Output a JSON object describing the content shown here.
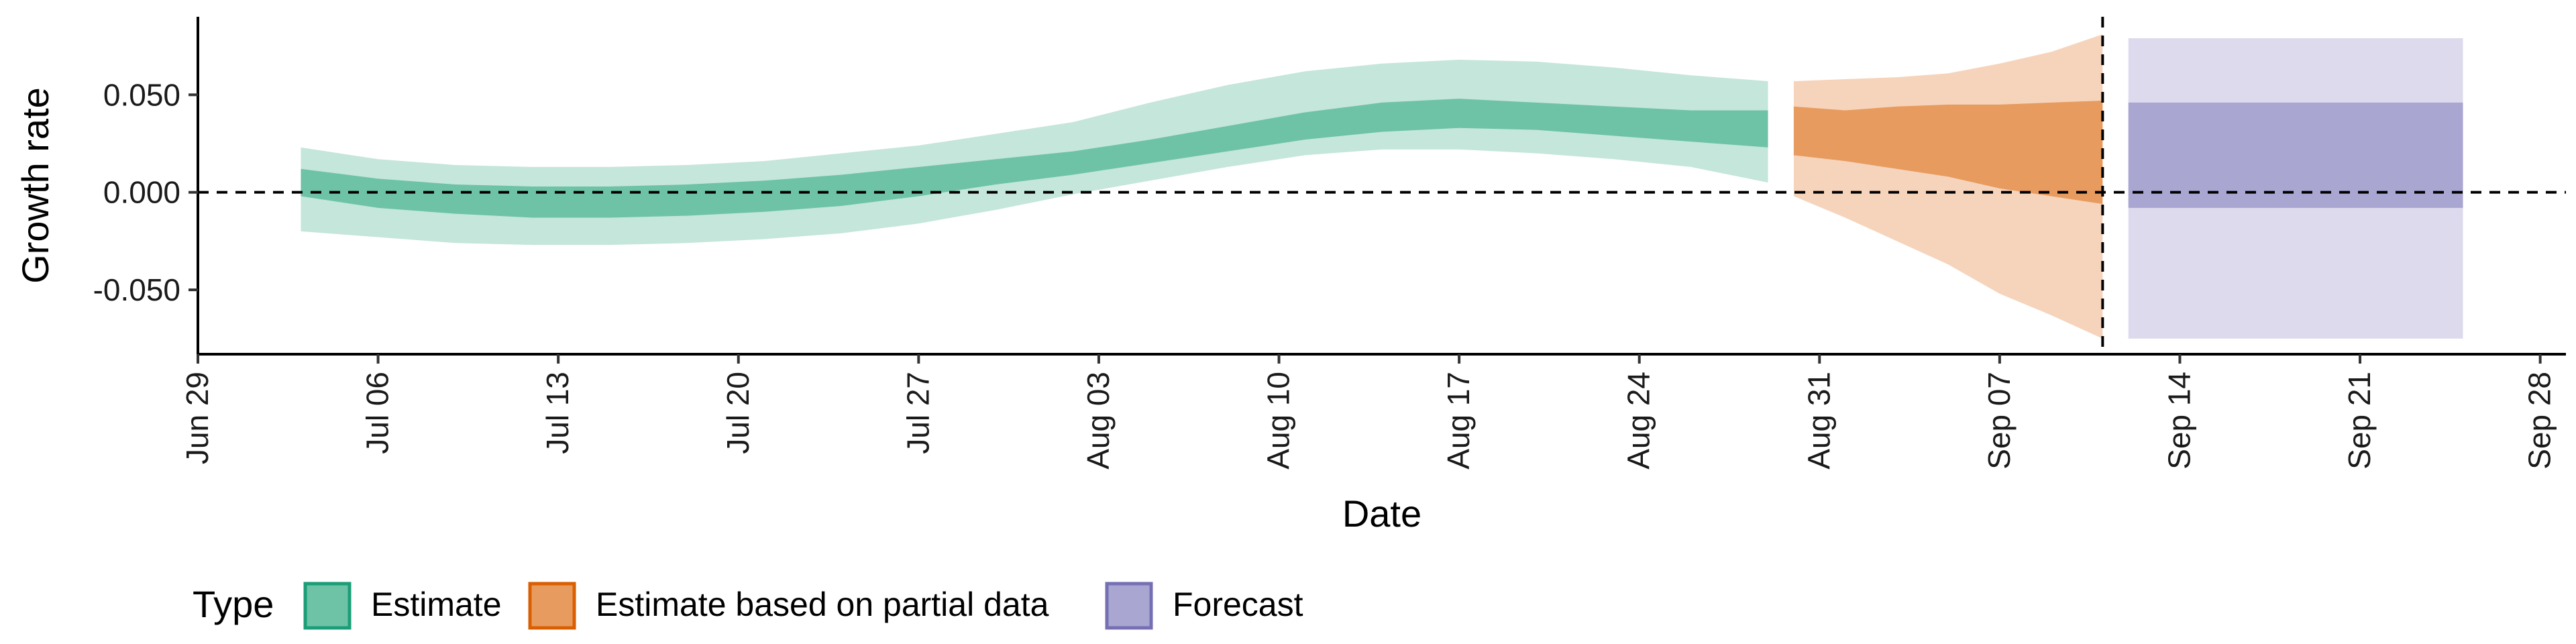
{
  "chart_data": {
    "type": "area",
    "xlabel": "Date",
    "ylabel": "Growth rate",
    "x_ticks": [
      "Jun 29",
      "Jul 06",
      "Jul 13",
      "Jul 20",
      "Jul 27",
      "Aug 03",
      "Aug 10",
      "Aug 17",
      "Aug 24",
      "Aug 31",
      "Sep 07",
      "Sep 14",
      "Sep 21",
      "Sep 28"
    ],
    "y_ticks": [
      "-0.050",
      "0.000",
      "0.050"
    ],
    "y_tick_values": [
      -0.05,
      0.0,
      0.05
    ],
    "ylim": [
      -0.083,
      0.09
    ],
    "xlim": [
      "2020-06-29",
      "2020-09-29"
    ],
    "reference_lines": {
      "horizontal_y": 0.0,
      "vertical_date": "2020-09-11"
    },
    "grid": false,
    "legend": {
      "title": "Type",
      "position": "bottom-left",
      "entries": [
        {
          "label": "Estimate",
          "fill": "#6ec3a6",
          "border": "#1b9e77"
        },
        {
          "label": "Estimate based on partial data",
          "fill": "#e89b5e",
          "border": "#d95f02"
        },
        {
          "label": "Forecast",
          "fill": "#a9a6d1",
          "border": "#7570b3"
        }
      ]
    },
    "series": [
      {
        "name": "Estimate",
        "colors": {
          "outer": "#c5e6da",
          "inner": "#6ec3a6"
        },
        "dates": [
          "2020-07-03",
          "2020-07-06",
          "2020-07-09",
          "2020-07-12",
          "2020-07-15",
          "2020-07-18",
          "2020-07-21",
          "2020-07-24",
          "2020-07-27",
          "2020-07-30",
          "2020-08-02",
          "2020-08-05",
          "2020-08-08",
          "2020-08-11",
          "2020-08-14",
          "2020-08-17",
          "2020-08-20",
          "2020-08-23",
          "2020-08-26",
          "2020-08-29"
        ],
        "outer_upper": [
          0.023,
          0.017,
          0.014,
          0.013,
          0.013,
          0.014,
          0.016,
          0.02,
          0.024,
          0.03,
          0.036,
          0.046,
          0.055,
          0.062,
          0.066,
          0.068,
          0.067,
          0.064,
          0.06,
          0.057
        ],
        "inner_upper": [
          0.012,
          0.007,
          0.004,
          0.003,
          0.003,
          0.004,
          0.006,
          0.009,
          0.013,
          0.017,
          0.021,
          0.027,
          0.034,
          0.041,
          0.046,
          0.048,
          0.046,
          0.044,
          0.042,
          0.042
        ],
        "inner_lower": [
          -0.002,
          -0.008,
          -0.011,
          -0.013,
          -0.013,
          -0.012,
          -0.01,
          -0.007,
          -0.002,
          0.004,
          0.009,
          0.015,
          0.021,
          0.027,
          0.031,
          0.033,
          0.032,
          0.029,
          0.026,
          0.023
        ],
        "outer_lower": [
          -0.02,
          -0.023,
          -0.026,
          -0.027,
          -0.027,
          -0.026,
          -0.024,
          -0.021,
          -0.016,
          -0.009,
          -0.001,
          0.006,
          0.013,
          0.019,
          0.022,
          0.022,
          0.02,
          0.017,
          0.013,
          0.005
        ]
      },
      {
        "name": "Estimate based on partial data",
        "colors": {
          "outer": "#f6d4bc",
          "inner": "#e89b5e"
        },
        "dates": [
          "2020-08-30",
          "2020-09-01",
          "2020-09-03",
          "2020-09-05",
          "2020-09-07",
          "2020-09-09",
          "2020-09-11"
        ],
        "outer_upper": [
          0.057,
          0.058,
          0.059,
          0.061,
          0.066,
          0.072,
          0.081
        ],
        "inner_upper": [
          0.044,
          0.042,
          0.044,
          0.045,
          0.045,
          0.046,
          0.047
        ],
        "inner_lower": [
          0.019,
          0.016,
          0.012,
          0.008,
          0.002,
          -0.002,
          -0.006
        ],
        "outer_lower": [
          -0.002,
          -0.013,
          -0.025,
          -0.037,
          -0.052,
          -0.063,
          -0.075
        ]
      },
      {
        "name": "Forecast",
        "colors": {
          "outer": "#dcdaec",
          "inner": "#a9a6d1"
        },
        "dates": [
          "2020-09-12",
          "2020-09-25"
        ],
        "outer_upper": [
          0.079,
          0.079
        ],
        "inner_upper": [
          0.046,
          0.046
        ],
        "inner_lower": [
          -0.008,
          -0.008
        ],
        "outer_lower": [
          -0.075,
          -0.075
        ]
      }
    ]
  }
}
